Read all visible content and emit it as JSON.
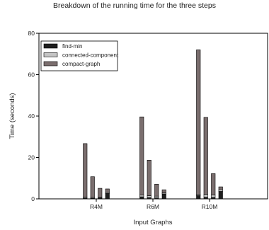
{
  "chart_data": {
    "type": "bar",
    "title": "Breakdown of the running time for the three steps",
    "xlabel": "Input Graphs",
    "ylabel": "Time (seconds)",
    "ylim": [
      0,
      80
    ],
    "yticks": [
      0,
      20,
      40,
      60,
      80
    ],
    "grid": false,
    "legend_position": "top-left",
    "stacked": true,
    "categories": [
      "R4M",
      "R6M",
      "R10M"
    ],
    "bars_per_category": 4,
    "series": [
      {
        "name": "find-min",
        "color": "#1e1e1e",
        "values": [
          [
            0.4,
            0.3,
            0.4,
            2.6
          ],
          [
            1.0,
            0.6,
            0.5,
            2.4
          ],
          [
            1.6,
            0.8,
            0.7,
            3.6
          ]
        ]
      },
      {
        "name": "connected-component",
        "color": "#c4c4c4",
        "values": [
          [
            0.5,
            0.4,
            0.3,
            0.5
          ],
          [
            0.8,
            0.9,
            0.8,
            0.5
          ],
          [
            0.6,
            1.4,
            1.2,
            0.8
          ]
        ]
      },
      {
        "name": "compact-graph",
        "color": "#7a6e6e",
        "values": [
          [
            25.8,
            10.0,
            4.4,
            1.7
          ],
          [
            37.8,
            17.2,
            5.8,
            1.5
          ],
          [
            69.8,
            37.2,
            10.3,
            1.4
          ]
        ]
      }
    ]
  }
}
